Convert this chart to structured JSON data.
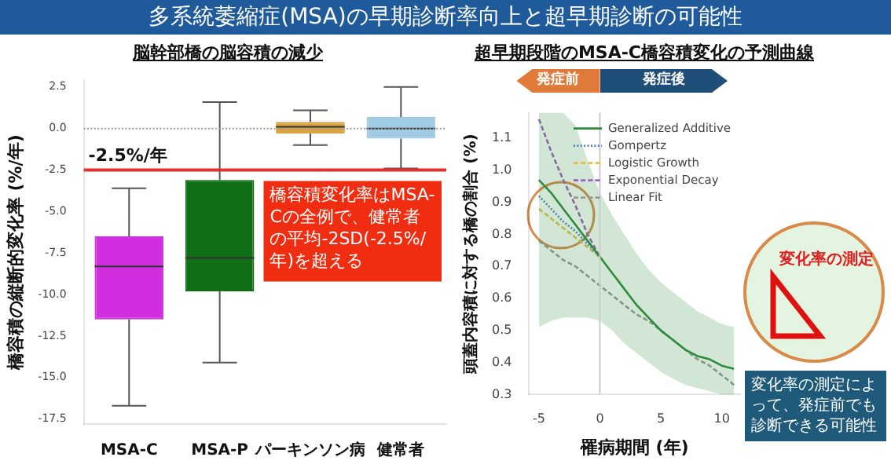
{
  "chart_data": [
    {
      "type": "box",
      "title": "多系統萎縮症(MSA)の早期診断率向上と超早期診断の可能性",
      "subtitle": "脳幹部橋の脳容積の減少",
      "ylabel": "橋容積の縦断的変化率 (%/年)",
      "categories": [
        "MSA-C",
        "MSA-P",
        "パーキンソン病",
        "健常者"
      ],
      "colors": [
        "#d12ee0",
        "#0f6e16",
        "#d9a440",
        "#9fcbe3"
      ],
      "boxes": [
        {
          "low": -16.7,
          "q1": -11.5,
          "median": -8.3,
          "q3": -6.5,
          "high": -3.6
        },
        {
          "low": -14.1,
          "q1": -9.8,
          "median": -7.8,
          "q3": -3.1,
          "high": 1.6
        },
        {
          "low": -1.0,
          "q1": -0.3,
          "median": 0.1,
          "q3": 0.4,
          "high": 1.1
        },
        {
          "low": -2.4,
          "q1": -0.6,
          "median": 0.0,
          "q3": 0.7,
          "high": 2.5
        }
      ],
      "ylim": [
        -17.8,
        2.9
      ],
      "yticks": [
        2.5,
        {
          "value": 0,
          "label": "0.0"
        },
        -2.5,
        {
          "value": -5,
          "label": "-5.0"
        },
        -7.5,
        {
          "value": -10,
          "label": "-10.0"
        },
        -12.5,
        {
          "value": -15,
          "label": "-15.0"
        },
        -17.5
      ],
      "ref_lines": [
        {
          "axis": "y",
          "value": 0,
          "color": "#999999",
          "line_style": "dotted"
        },
        {
          "axis": "y",
          "value": -2.5,
          "label": "-2.5%/年",
          "color": "#e03030"
        }
      ],
      "annotations": [
        "橋容積変化率はMSA-Cの全例で、健常者の平均-2SD(-2.5%/年)を超える"
      ]
    },
    {
      "type": "line",
      "title": "超早期段階のMSA-C橋容積変化の予測曲線",
      "xlabel": "罹病期間 (年)",
      "ylabel": "頭蓋内容積に対する橋の割合 (%)",
      "x": [
        -5,
        -4,
        -3,
        -2,
        -1,
        0,
        1,
        2,
        3,
        4,
        5,
        6,
        7,
        8,
        9,
        10,
        11
      ],
      "series": [
        {
          "name": "Generalized Additive",
          "color": "#2e8b3e",
          "line_style": "solid",
          "values": [
            0.97,
            0.93,
            0.88,
            0.83,
            0.78,
            0.73,
            0.68,
            0.63,
            0.58,
            0.54,
            0.5,
            0.47,
            0.44,
            0.42,
            0.41,
            0.39,
            0.38
          ],
          "lower": [
            0.51,
            0.53,
            0.54,
            0.54,
            0.54,
            0.53,
            0.5,
            0.46,
            0.43,
            0.4,
            0.37,
            0.35,
            0.33,
            0.32,
            0.31,
            0.3,
            0.3
          ],
          "upper": [
            1.18,
            1.18,
            1.18,
            1.14,
            1.03,
            0.93,
            0.86,
            0.8,
            0.74,
            0.69,
            0.65,
            0.62,
            0.59,
            0.56,
            0.54,
            0.52,
            0.51
          ]
        },
        {
          "name": "Gompertz",
          "color": "#4a7fc0",
          "line_style": "dotted",
          "values": [
            0.92,
            0.88,
            0.84,
            0.81,
            0.77,
            0.73,
            null,
            null,
            null,
            null,
            null,
            null,
            null,
            null,
            null,
            null,
            null
          ]
        },
        {
          "name": "Logistic Growth",
          "color": "#e6c04a",
          "line_style": "dashed",
          "values": [
            0.88,
            0.85,
            0.82,
            0.79,
            0.76,
            0.73,
            null,
            null,
            null,
            null,
            null,
            null,
            null,
            null,
            null,
            null,
            null
          ]
        },
        {
          "name": "Exponential Decay",
          "color": "#a05fc0",
          "line_style": "dashed",
          "values": [
            1.16,
            1.06,
            0.97,
            0.89,
            0.8,
            0.73,
            null,
            null,
            null,
            null,
            null,
            null,
            null,
            null,
            null,
            null,
            null
          ]
        },
        {
          "name": "Linear Fit",
          "color": "#999999",
          "line_style": "dashed",
          "values": [
            0.78,
            0.75,
            0.72,
            0.7,
            0.67,
            0.64,
            0.61,
            0.58,
            0.55,
            0.53,
            0.5,
            0.47,
            0.44,
            0.41,
            0.39,
            0.36,
            0.33
          ]
        }
      ],
      "xlim": [
        -5.8,
        11.5
      ],
      "xticks": [
        -5,
        0,
        5,
        10
      ],
      "ylim": [
        0.3,
        1.18
      ],
      "yticks": [
        0.3,
        0.4,
        0.5,
        0.6,
        0.7,
        0.8,
        0.9,
        {
          "value": 1,
          "label": "1.0"
        },
        1.1
      ],
      "legend": "top right",
      "marker": "none",
      "grid": false,
      "ref_lines": [
        {
          "axis": "x",
          "value": 0,
          "color": "#cccccc"
        }
      ],
      "annotations": [
        "発症前",
        "発症後",
        "変化率の測定",
        "変化率の測定によって、発症前でも診断できる可能性"
      ]
    }
  ]
}
